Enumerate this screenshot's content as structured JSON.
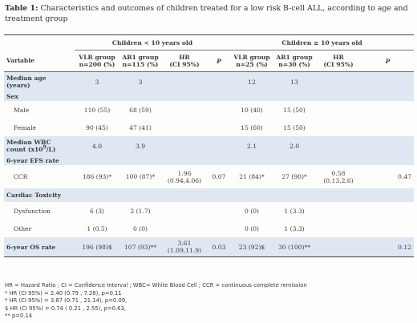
{
  "caption": {
    "label": "Table 1:",
    "text": " Characteristics and outcomes of children treated for a low risk B-cell ALL, according to age and treatment group"
  },
  "groups": {
    "young": "Children < 10 years old",
    "old": "Children ≥ 10 years old"
  },
  "headers": {
    "variable": "Variable",
    "vlr_young_1": "VLR group",
    "vlr_young_2": "n=200 (%)",
    "ar1_young_1": "AR1 group",
    "ar1_young_2": "n=115 (%)",
    "hr_young_1": "HR",
    "hr_young_2": "(CI 95%)",
    "p_young": "P",
    "vlr_old_1": "VLR group",
    "vlr_old_2": "n=25 (%)",
    "ar1_old_1": "AR1 group",
    "ar1_old_2": "n=30 (%)",
    "hr_old_1": "HR",
    "hr_old_2": "(CI 95%)",
    "p_old": "P"
  },
  "rows": {
    "median_age": {
      "label_1": "Median age",
      "label_2": "(years)",
      "vlr_y": "3",
      "ar1_y": "3",
      "vlr_o": "12",
      "ar1_o": "13"
    },
    "sex": {
      "label": "Sex"
    },
    "male": {
      "label": "Male",
      "vlr_y": "110 (55)",
      "ar1_y": "68 (59)",
      "vlr_o": "10 (40)",
      "ar1_o": "15 (50)"
    },
    "female": {
      "label": "Female",
      "vlr_y": "90 (45)",
      "ar1_y": "47 (41)",
      "vlr_o": "15 (60)",
      "ar1_o": "15 (50)"
    },
    "wbc": {
      "label_1": "Median WBC",
      "label_2_pre": "count (x10",
      "label_2_sup": "9",
      "label_2_post": "/L)",
      "vlr_y": "4.0",
      "ar1_y": "3.9",
      "vlr_o": "2.1",
      "ar1_o": "2.0"
    },
    "efs": {
      "label": "6-year EFS rate"
    },
    "ccr": {
      "label": "CCR",
      "vlr_y": "186 (93)*",
      "ar1_y": "100 (87)*",
      "hr_y_1": "1.96",
      "hr_y_2": "(0.94,4.06)",
      "p_y": "0.07",
      "vlr_o": "21 (84)*",
      "ar1_o": "27 (90)*",
      "hr_o_1": "0.58",
      "hr_o_2": "(0.13,2.6)",
      "p_o": "0.47"
    },
    "cardiac": {
      "label": "Cardiac Toxicity"
    },
    "dysfunction": {
      "label": "Dysfunction",
      "vlr_y": "6 (3)",
      "ar1_y": "2 (1.7)",
      "vlr_o": "0 (0)",
      "ar1_o": "1 (3.3)"
    },
    "other": {
      "label": "Other",
      "vlr_y": "1 (0.5)",
      "ar1_y": "0 (0)",
      "vlr_o": "0 (0)",
      "ar1_o": "1 (3.3)"
    },
    "os": {
      "label": "6-year OS rate",
      "vlr_y": "196 (98)$",
      "ar1_y": "107 (93)**",
      "hr_y_1": "3.61",
      "hr_y_2": "(1.09,11.9)",
      "p_y": "0.03",
      "vlr_o": "23 (92)$",
      "ar1_o": "30 (100)**",
      "p_o": "0.12"
    }
  },
  "footnotes": [
    "HR = Hazard Ratio ; CI = Confidence Interval ; WBC= White Blood Cell ; CCR = continuous complete remission",
    "* HR (CI 95%) = 2.40 (0.79 , 7.28), p=0.11",
    "* HR (CI 95%) = 3.87 (0.71 , 21.14), p=0.09,",
    "$ HR (CI 95%) = 0.74 ( 0.21 , 2.55), p=0.63,",
    "** p=0.14"
  ]
}
